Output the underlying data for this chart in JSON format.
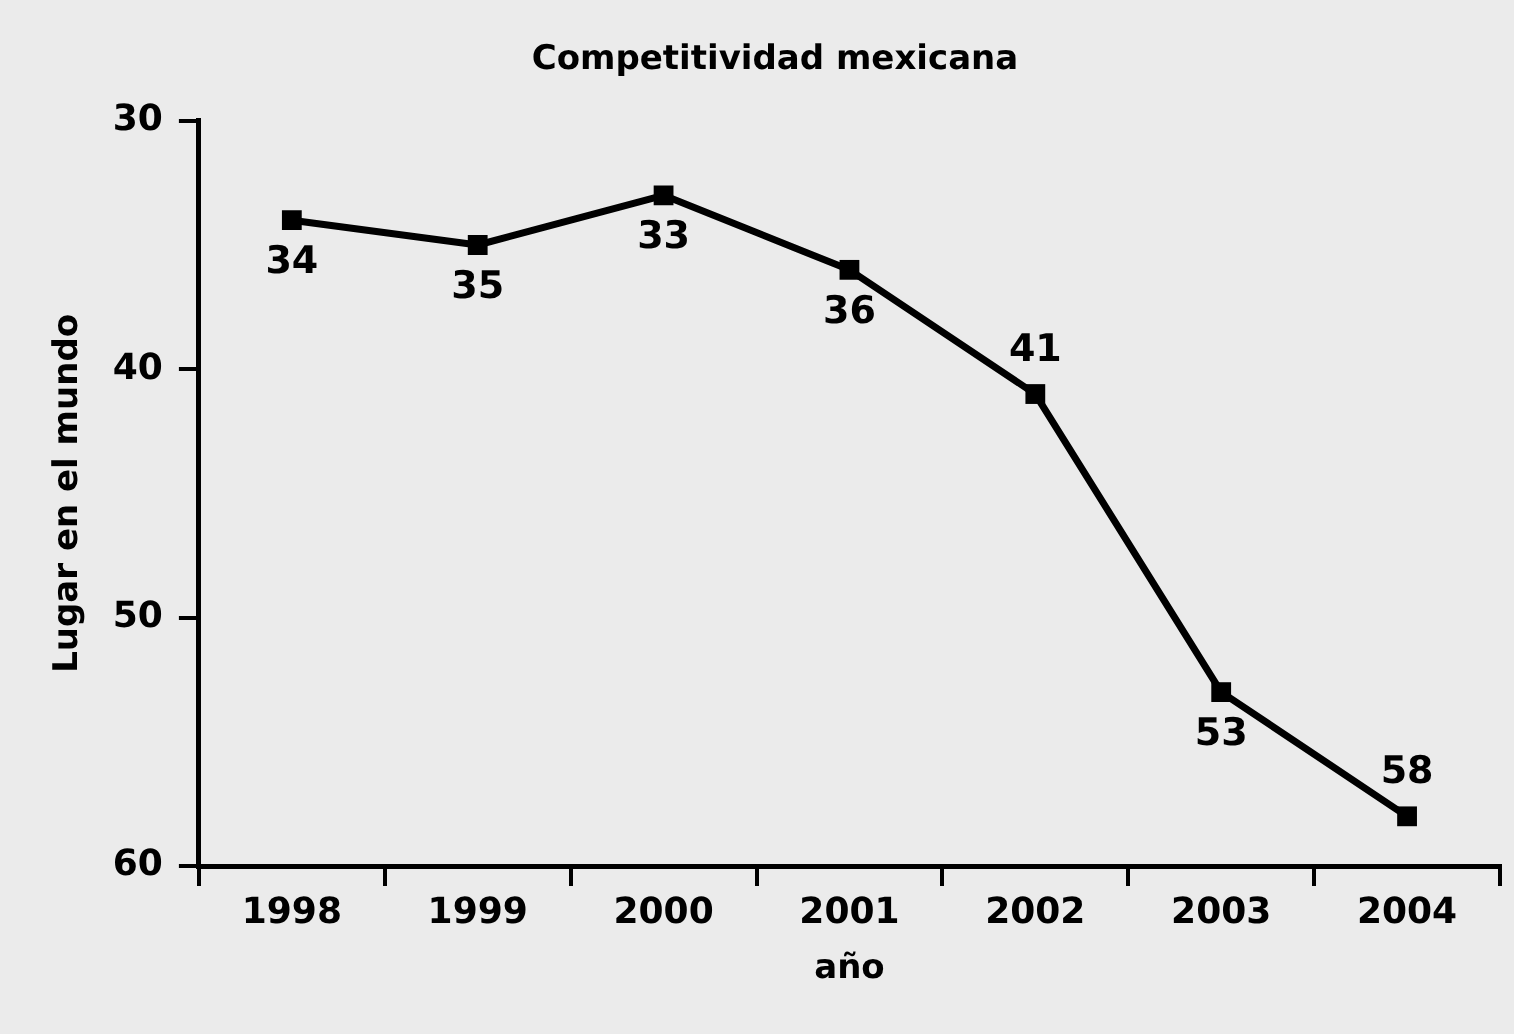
{
  "chart_data": {
    "type": "line",
    "title": "Competitividad mexicana",
    "xlabel": "año",
    "ylabel": "Lugar en el mundo",
    "categories": [
      "1998",
      "1999",
      "2000",
      "2001",
      "2002",
      "2003",
      "2004"
    ],
    "series": [
      {
        "color": "#000000",
        "values": [
          34,
          35,
          33,
          36,
          41,
          53,
          58
        ]
      }
    ],
    "ylim": [
      60,
      30
    ],
    "yticks": [
      30,
      40,
      50,
      60
    ],
    "grid": false,
    "legend": false,
    "marker": "square",
    "line_style": "solid",
    "data_labels": true
  }
}
